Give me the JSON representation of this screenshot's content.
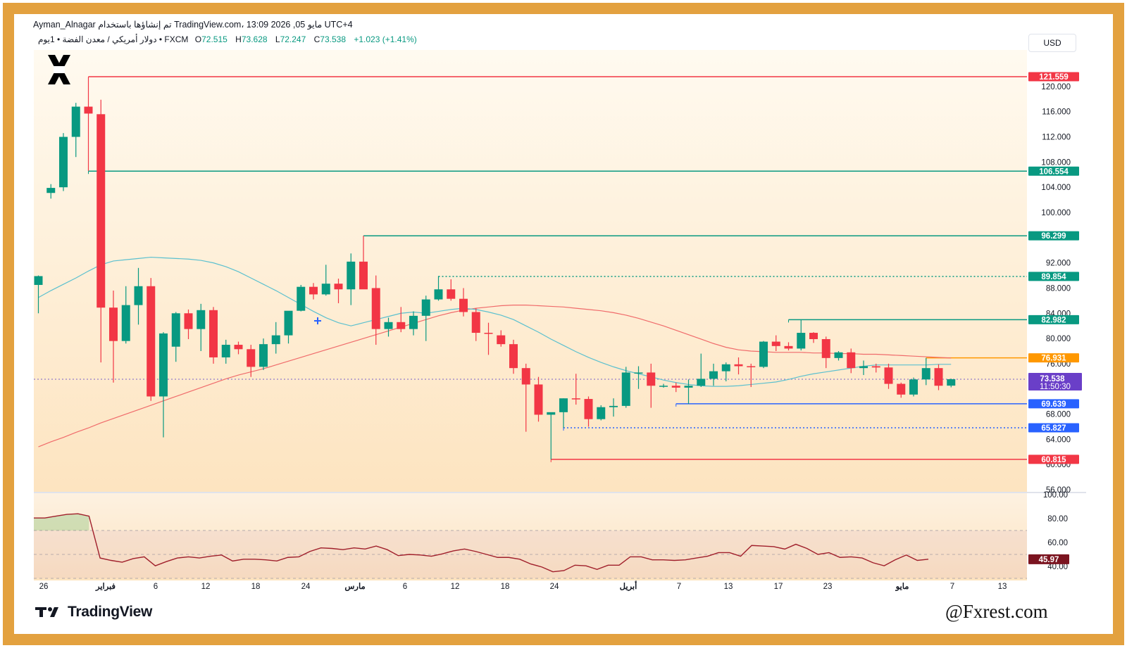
{
  "header": {
    "line1": "Ayman_Alnagar تم إنشاؤها باستخدام TradingView.com، 13:09 2026 ,05 مايو UTC+4",
    "symbol_desc": "دولار أمريكي / معدن الفضة • 1يوم • FXCM",
    "ohlc": [
      {
        "key": "O",
        "value": "72.515"
      },
      {
        "key": "H",
        "value": "73.628"
      },
      {
        "key": "L",
        "value": "72.247"
      },
      {
        "key": "C",
        "value": "73.538"
      }
    ],
    "change": "+1.023 (+1.41%)"
  },
  "currency_button": "USD",
  "branding": {
    "tv_logo_text": "TradingView",
    "watermark": "@Fxrest.com"
  },
  "colors": {
    "up": "#089981",
    "down": "#f23645",
    "ma_fast": "#5bc0cf",
    "ma_slow": "#f06b6b",
    "rsi_line": "#a01f2b",
    "frame": "#e3a13f"
  },
  "chart_data": [
    {
      "type": "candlestick",
      "name": "price",
      "ylim": [
        56,
        123
      ],
      "y_ticks": [
        "120.000",
        "116.000",
        "112.000",
        "108.000",
        "104.000",
        "100.000",
        "92.000",
        "88.000",
        "84.000",
        "80.000",
        "76.000",
        "68.000",
        "64.000",
        "60.000",
        "56.000"
      ],
      "x_ticks": [
        "26",
        "فبراير",
        "6",
        "12",
        "18",
        "24",
        "مارس",
        "6",
        "12",
        "18",
        "24",
        "أبريل",
        "7",
        "13",
        "17",
        "23",
        "مايو",
        "7",
        "13"
      ],
      "candles": [
        {
          "o": 88.5,
          "h": 90.0,
          "l": 84.0,
          "c": 89.9
        },
        {
          "o": 103.1,
          "h": 104.5,
          "l": 102.2,
          "c": 103.9
        },
        {
          "o": 104.0,
          "h": 112.6,
          "l": 103.4,
          "c": 112.0
        },
        {
          "o": 112.0,
          "h": 117.4,
          "l": 108.8,
          "c": 116.8
        },
        {
          "o": 116.8,
          "h": 121.5,
          "l": 106.6,
          "c": 115.7
        },
        {
          "o": 115.6,
          "h": 117.9,
          "l": 76.2,
          "c": 84.9
        },
        {
          "o": 84.9,
          "h": 87.6,
          "l": 73.0,
          "c": 79.6
        },
        {
          "o": 79.6,
          "h": 88.3,
          "l": 79.2,
          "c": 85.3
        },
        {
          "o": 85.3,
          "h": 91.2,
          "l": 82.2,
          "c": 88.3
        },
        {
          "o": 88.3,
          "h": 89.6,
          "l": 70.1,
          "c": 70.8
        },
        {
          "o": 70.8,
          "h": 81.0,
          "l": 64.3,
          "c": 80.8
        },
        {
          "o": 78.7,
          "h": 84.2,
          "l": 76.3,
          "c": 84.0
        },
        {
          "o": 84.0,
          "h": 84.6,
          "l": 79.9,
          "c": 81.5
        },
        {
          "o": 81.5,
          "h": 85.5,
          "l": 78.0,
          "c": 84.5
        },
        {
          "o": 84.5,
          "h": 85.0,
          "l": 76.0,
          "c": 77.0
        },
        {
          "o": 77.0,
          "h": 79.8,
          "l": 76.0,
          "c": 79.0
        },
        {
          "o": 79.0,
          "h": 79.5,
          "l": 77.5,
          "c": 78.3
        },
        {
          "o": 78.3,
          "h": 79.0,
          "l": 73.9,
          "c": 75.5
        },
        {
          "o": 75.5,
          "h": 80.0,
          "l": 75.0,
          "c": 79.1
        },
        {
          "o": 79.1,
          "h": 82.6,
          "l": 77.6,
          "c": 80.5
        },
        {
          "o": 80.5,
          "h": 84.0,
          "l": 79.2,
          "c": 84.4
        },
        {
          "o": 84.4,
          "h": 88.5,
          "l": 84.3,
          "c": 88.2
        },
        {
          "o": 88.2,
          "h": 88.8,
          "l": 86.2,
          "c": 87.0
        },
        {
          "o": 87.0,
          "h": 91.7,
          "l": 86.8,
          "c": 88.7
        },
        {
          "o": 88.7,
          "h": 89.5,
          "l": 85.6,
          "c": 87.8
        },
        {
          "o": 87.8,
          "h": 93.5,
          "l": 85.3,
          "c": 92.2
        },
        {
          "o": 92.2,
          "h": 96.3,
          "l": 88.4,
          "c": 87.8
        },
        {
          "o": 88.0,
          "h": 90.0,
          "l": 79.0,
          "c": 81.5
        },
        {
          "o": 81.5,
          "h": 83.3,
          "l": 80.3,
          "c": 82.6
        },
        {
          "o": 82.6,
          "h": 85.0,
          "l": 81.0,
          "c": 81.5
        },
        {
          "o": 81.5,
          "h": 84.3,
          "l": 80.5,
          "c": 83.6
        },
        {
          "o": 83.6,
          "h": 86.8,
          "l": 79.6,
          "c": 86.2
        },
        {
          "o": 86.2,
          "h": 89.9,
          "l": 86.0,
          "c": 87.8
        },
        {
          "o": 87.8,
          "h": 89.4,
          "l": 86.0,
          "c": 86.3
        },
        {
          "o": 86.3,
          "h": 88.0,
          "l": 83.5,
          "c": 84.2
        },
        {
          "o": 84.2,
          "h": 84.8,
          "l": 79.6,
          "c": 80.9
        },
        {
          "o": 80.9,
          "h": 82.5,
          "l": 77.4,
          "c": 80.8
        },
        {
          "o": 80.5,
          "h": 81.3,
          "l": 78.7,
          "c": 79.1
        },
        {
          "o": 79.1,
          "h": 79.8,
          "l": 74.4,
          "c": 75.3
        },
        {
          "o": 75.3,
          "h": 76.0,
          "l": 65.2,
          "c": 72.7
        },
        {
          "o": 72.7,
          "h": 73.9,
          "l": 66.8,
          "c": 67.9
        },
        {
          "o": 67.9,
          "h": 68.1,
          "l": 60.8,
          "c": 68.3
        },
        {
          "o": 68.3,
          "h": 70.5,
          "l": 65.8,
          "c": 70.5
        },
        {
          "o": 70.5,
          "h": 74.4,
          "l": 69.5,
          "c": 70.4
        },
        {
          "o": 70.4,
          "h": 70.8,
          "l": 66.0,
          "c": 67.2
        },
        {
          "o": 67.2,
          "h": 69.4,
          "l": 67.0,
          "c": 69.1
        },
        {
          "o": 69.1,
          "h": 70.5,
          "l": 67.6,
          "c": 69.3
        },
        {
          "o": 69.3,
          "h": 75.5,
          "l": 69.0,
          "c": 74.6
        },
        {
          "o": 74.6,
          "h": 75.6,
          "l": 72.0,
          "c": 74.6
        },
        {
          "o": 74.6,
          "h": 76.0,
          "l": 69.0,
          "c": 72.5
        },
        {
          "o": 72.5,
          "h": 72.8,
          "l": 72.2,
          "c": 72.5
        },
        {
          "o": 72.5,
          "h": 73.0,
          "l": 71.5,
          "c": 72.2
        },
        {
          "o": 72.2,
          "h": 73.5,
          "l": 69.6,
          "c": 72.5
        },
        {
          "o": 72.5,
          "h": 77.6,
          "l": 72.3,
          "c": 73.6
        },
        {
          "o": 73.6,
          "h": 76.0,
          "l": 72.5,
          "c": 74.8
        },
        {
          "o": 74.8,
          "h": 76.2,
          "l": 73.2,
          "c": 75.9
        },
        {
          "o": 75.9,
          "h": 77.0,
          "l": 74.3,
          "c": 75.6
        },
        {
          "o": 75.6,
          "h": 76.0,
          "l": 72.3,
          "c": 75.5
        },
        {
          "o": 75.5,
          "h": 79.6,
          "l": 75.3,
          "c": 79.5
        },
        {
          "o": 79.5,
          "h": 80.5,
          "l": 78.0,
          "c": 78.8
        },
        {
          "o": 78.8,
          "h": 79.4,
          "l": 78.1,
          "c": 78.4
        },
        {
          "o": 78.4,
          "h": 83.0,
          "l": 78.1,
          "c": 80.9
        },
        {
          "o": 80.9,
          "h": 81.0,
          "l": 79.3,
          "c": 79.9
        },
        {
          "o": 79.9,
          "h": 80.3,
          "l": 75.3,
          "c": 76.9
        },
        {
          "o": 76.9,
          "h": 78.0,
          "l": 76.5,
          "c": 77.8
        },
        {
          "o": 77.8,
          "h": 78.4,
          "l": 74.5,
          "c": 75.3
        },
        {
          "o": 75.3,
          "h": 76.5,
          "l": 74.2,
          "c": 75.6
        },
        {
          "o": 75.6,
          "h": 76.0,
          "l": 74.6,
          "c": 75.4
        },
        {
          "o": 75.4,
          "h": 76.0,
          "l": 72.0,
          "c": 72.8
        },
        {
          "o": 72.8,
          "h": 73.0,
          "l": 70.6,
          "c": 71.1
        },
        {
          "o": 71.1,
          "h": 73.8,
          "l": 70.8,
          "c": 73.5
        },
        {
          "o": 73.5,
          "h": 76.9,
          "l": 72.6,
          "c": 75.3
        },
        {
          "o": 75.3,
          "h": 75.9,
          "l": 71.8,
          "c": 72.5
        },
        {
          "o": 72.515,
          "h": 73.628,
          "l": 72.247,
          "c": 73.538
        }
      ],
      "ma_fast": [
        86.5,
        87.6,
        88.6,
        89.6,
        90.7,
        91.7,
        92.3,
        92.5,
        92.7,
        92.9,
        92.8,
        92.7,
        92.6,
        92.4,
        92.0,
        91.4,
        90.6,
        89.6,
        88.6,
        87.6,
        86.5,
        85.4,
        84.3,
        83.3,
        82.5,
        82.0,
        82.5,
        83.0,
        83.5,
        84.0,
        84.2,
        84.0,
        84.3,
        84.6,
        84.8,
        84.6,
        84.2,
        83.7,
        83.0,
        82.0,
        81.0,
        79.9,
        78.9,
        77.9,
        77.0,
        76.2,
        75.5,
        74.9,
        74.4,
        73.9,
        73.4,
        73.0,
        72.7,
        72.5,
        72.4,
        72.4,
        72.5,
        72.7,
        72.9,
        73.1,
        73.5,
        74.0,
        74.4,
        74.7,
        75.0,
        75.3,
        75.6,
        75.8,
        75.8,
        75.8,
        75.8,
        75.8,
        75.9,
        75.9
      ],
      "ma_slow": [
        62.8,
        63.6,
        64.3,
        65.1,
        65.8,
        66.6,
        67.3,
        68.0,
        68.7,
        69.4,
        70.1,
        70.8,
        71.5,
        72.2,
        72.9,
        73.6,
        74.2,
        74.7,
        75.2,
        75.8,
        76.4,
        77.0,
        77.6,
        78.2,
        78.8,
        79.4,
        80.0,
        80.6,
        81.2,
        81.8,
        82.4,
        83.0,
        83.6,
        84.1,
        84.5,
        84.8,
        85.0,
        85.2,
        85.3,
        85.3,
        85.2,
        85.1,
        85.0,
        84.8,
        84.6,
        84.4,
        84.1,
        83.7,
        83.2,
        82.6,
        82.0,
        81.3,
        80.6,
        79.9,
        79.2,
        78.6,
        78.2,
        78.0,
        77.9,
        77.8,
        77.8,
        77.8,
        77.7,
        77.7,
        77.6,
        77.6,
        77.5,
        77.5,
        77.4,
        77.3,
        77.2,
        77.1,
        77.0,
        76.9
      ],
      "levels": [
        {
          "value": "121.559",
          "color": "#f23645",
          "style": "solid",
          "start": 4
        },
        {
          "value": "106.554",
          "color": "#089981",
          "style": "solid",
          "start": 4
        },
        {
          "value": "96.299",
          "color": "#089981",
          "style": "solid",
          "start": 26
        },
        {
          "value": "89.854",
          "color": "#089981",
          "style": "dotted",
          "start": 32
        },
        {
          "value": "82.982",
          "color": "#089981",
          "style": "solid",
          "start": 60
        },
        {
          "value": "76.931",
          "color": "#ff9800",
          "style": "solid",
          "start": 71
        },
        {
          "value": "69.639",
          "color": "#2962ff",
          "style": "solid",
          "start": 51
        },
        {
          "value": "65.827",
          "color": "#2962ff",
          "style": "dotted",
          "start": 42
        },
        {
          "value": "60.815",
          "color": "#f23645",
          "style": "solid",
          "start": 41
        }
      ],
      "last_price": {
        "value": "73.538",
        "countdown": "11:50:30"
      }
    },
    {
      "type": "line",
      "name": "RSI",
      "ylim": [
        30,
        100
      ],
      "y_ticks": [
        "100.00",
        "80.00",
        "60.00",
        "40.00"
      ],
      "bands": [
        70,
        50,
        30
      ],
      "last_value": "45.97",
      "values": [
        80.5,
        80.5,
        82.0,
        83.5,
        84.0,
        82.0,
        47.0,
        45.0,
        43.5,
        46.5,
        48.0,
        40.5,
        44.0,
        47.0,
        48.0,
        47.0,
        48.5,
        49.5,
        44.5,
        46.0,
        46.0,
        45.5,
        44.5,
        47.5,
        48.0,
        52.5,
        55.5,
        55.0,
        54.0,
        55.5,
        54.5,
        57.0,
        54.0,
        49.0,
        50.0,
        49.5,
        48.5,
        50.5,
        53.0,
        54.5,
        52.5,
        50.0,
        47.5,
        47.5,
        46.0,
        42.0,
        39.5,
        35.5,
        36.5,
        41.0,
        40.5,
        37.5,
        41.0,
        41.0,
        48.0,
        48.0,
        45.5,
        45.5,
        45.0,
        45.5,
        47.0,
        48.5,
        51.5,
        51.5,
        48.5,
        57.5,
        57.0,
        56.5,
        54.5,
        58.5,
        55.0,
        50.0,
        51.5,
        47.5,
        48.0,
        47.0,
        43.0,
        40.5,
        45.5,
        49.5,
        45.0,
        45.97
      ]
    }
  ]
}
